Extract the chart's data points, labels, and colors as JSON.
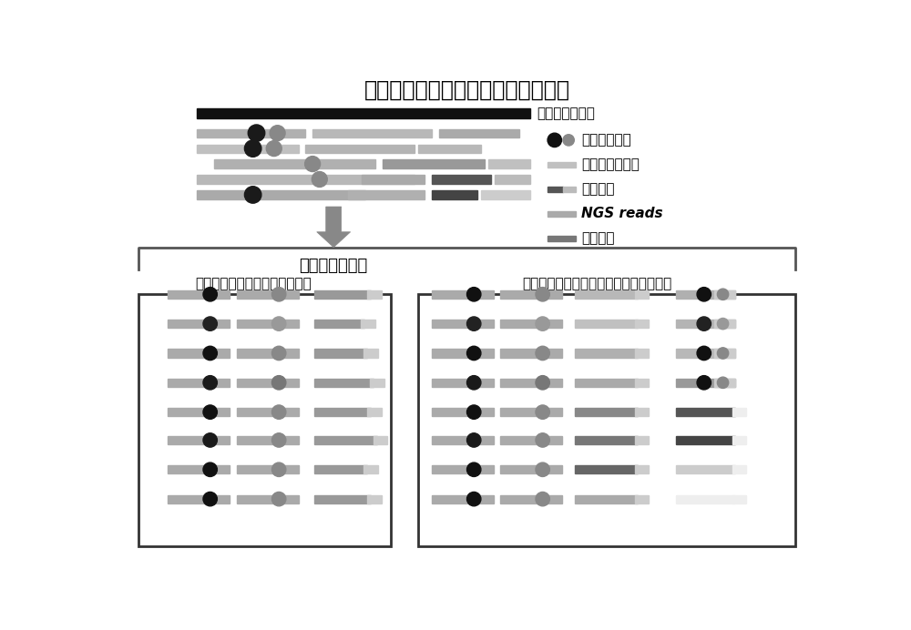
{
  "title_top": "基因组上的体细胞突变以及基因融合",
  "label_genome": "人类参考基因组",
  "label_build_library": "构建新生多肽库",
  "label_traditional": "传统方法（单独考查每个突变）",
  "label_new": "本发明方法（考查多突变以及基因融合）",
  "legend_labels": [
    "非同义点突变",
    "小片段插入缺失",
    "基因融合",
    "NGS reads",
    "多肽序列"
  ],
  "bg_color": "#ffffff",
  "genome_bar_color": "#111111",
  "ngs_colors": [
    "#aaaaaa",
    "#b8b8b8",
    "#999999",
    "#c0c0c0",
    "#a8a8a8"
  ],
  "dot_black": "#1a1a1a",
  "dot_gray": "#888888",
  "indel_color": "#c0c0c0",
  "fusion_dark": "#666666",
  "fusion_light": "#bbbbbb",
  "ngs_read_color": "#aaaaaa",
  "peptide_dark": "#777777",
  "peptide_light": "#cccccc"
}
